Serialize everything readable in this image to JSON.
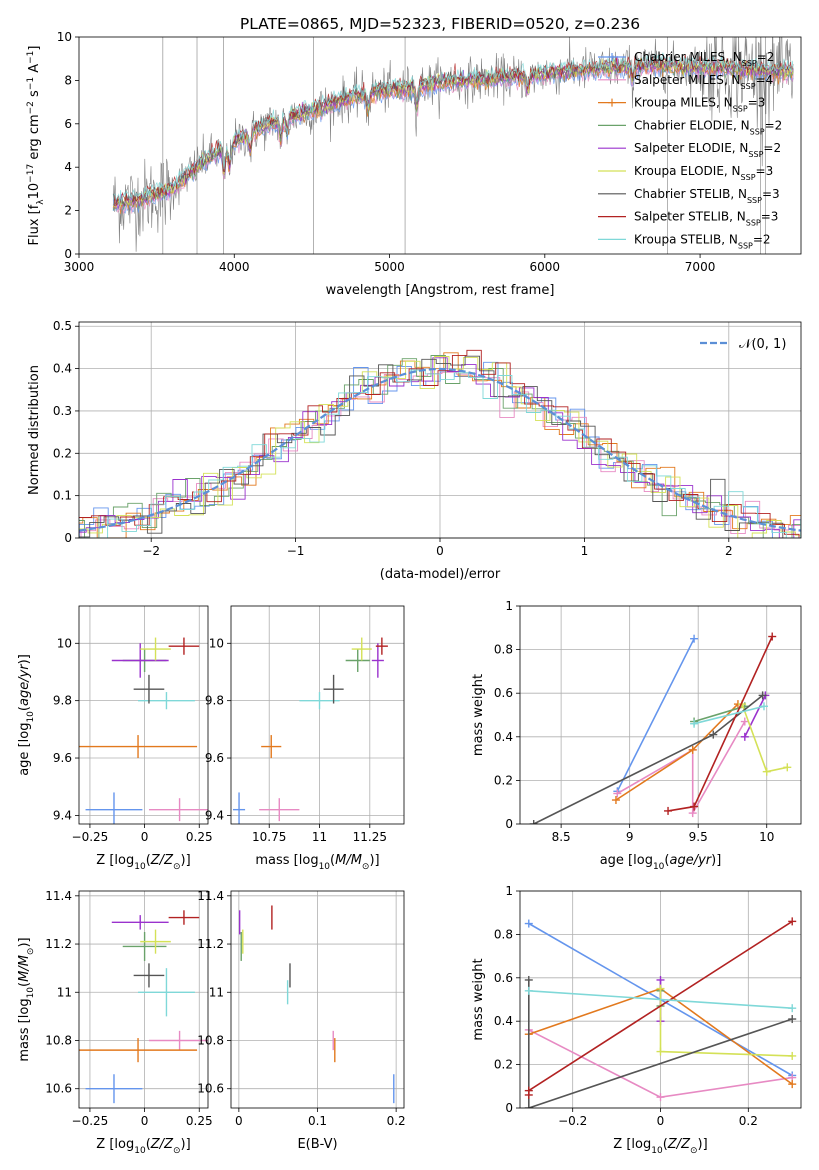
{
  "figure_title": "PLATE=0865, MJD=52323, FIBERID=0520, z=0.236",
  "colors": {
    "chabrier_miles": "#6495ed",
    "salpeter_miles": "#e78ac3",
    "kroupa_miles": "#e2791e",
    "chabrier_elodie": "#6aa26a",
    "salpeter_elodie": "#9a32cd",
    "kroupa_elodie": "#d4e157",
    "chabrier_stelib": "#555555",
    "salpeter_stelib": "#b22222",
    "kroupa_stelib": "#7fd8d8",
    "gaussian": "#5b8fd6"
  },
  "chart_data": [
    {
      "id": "spectrum",
      "type": "line",
      "title": "PLATE=0865, MJD=52323, FIBERID=0520, z=0.236",
      "xlabel": "wavelength [Angstrom, rest frame]",
      "ylabel": "Flux [f_λ 10^-17 erg cm^-2 s^-1 A^-1]",
      "xlim": [
        3000,
        7650
      ],
      "ylim": [
        0,
        10
      ],
      "xticks": [
        3000,
        4000,
        5000,
        6000,
        7000
      ],
      "yticks": [
        0,
        2,
        4,
        6,
        8,
        10
      ],
      "grid": false,
      "legend_position": "top-right",
      "continuum": {
        "x": [
          3220,
          3400,
          3600,
          3800,
          3950,
          4100,
          4300,
          4500,
          4700,
          4900,
          5100,
          5300,
          5500,
          5700,
          5900,
          6100,
          6300,
          6500,
          6700,
          6900,
          7100,
          7300,
          7600
        ],
        "y": [
          2.3,
          2.5,
          3.0,
          4.3,
          4.9,
          5.6,
          6.2,
          6.6,
          7.1,
          7.5,
          7.6,
          7.9,
          8.0,
          8.1,
          8.2,
          8.4,
          8.5,
          8.6,
          8.7,
          8.6,
          8.6,
          8.5,
          8.4
        ]
      },
      "series": [
        {
          "name": "Chabrier MILES, N_SSP=2",
          "color": "#6495ed",
          "marker": "+"
        },
        {
          "name": "Salpeter MILES, N_SSP=4",
          "color": "#e78ac3",
          "marker": "x"
        },
        {
          "name": "Kroupa MILES, N_SSP=3",
          "color": "#e2791e",
          "marker": "+"
        },
        {
          "name": "Chabrier ELODIE, N_SSP=2",
          "color": "#6aa26a",
          "marker": ""
        },
        {
          "name": "Salpeter ELODIE, N_SSP=2",
          "color": "#9a32cd",
          "marker": ""
        },
        {
          "name": "Kroupa ELODIE, N_SSP=3",
          "color": "#d4e157",
          "marker": ""
        },
        {
          "name": "Chabrier STELIB, N_SSP=3",
          "color": "#555555",
          "marker": ""
        },
        {
          "name": "Salpeter STELIB, N_SSP=3",
          "color": "#b22222",
          "marker": ""
        },
        {
          "name": "Kroupa STELIB, N_SSP=2",
          "color": "#7fd8d8",
          "marker": ""
        }
      ]
    },
    {
      "id": "residuals",
      "type": "histogram",
      "xlabel": "(data-model)/error",
      "ylabel": "Normed distribution",
      "xlim": [
        -2.5,
        2.5
      ],
      "ylim": [
        0,
        0.51
      ],
      "xticks": [
        -2,
        -1,
        0,
        1,
        2
      ],
      "yticks": [
        0.0,
        0.1,
        0.2,
        0.3,
        0.4,
        0.5
      ],
      "grid": true,
      "legend_position": "top-right",
      "gaussian_label": "𝒩(0, 1)",
      "bin_width": 0.1
    },
    {
      "id": "age_vs_z",
      "type": "scatter",
      "xlabel": "Z [log10(Z/Z☉)]",
      "ylabel": "age [log10(age/yr)]",
      "xlim": [
        -0.3,
        0.29
      ],
      "ylim": [
        9.37,
        10.13
      ],
      "xticks": [
        -0.25,
        0.0,
        0.25
      ],
      "yticks": [
        9.4,
        9.6,
        9.8,
        10.0
      ],
      "grid": true,
      "points": [
        {
          "x": -0.14,
          "y": 9.42,
          "xerr": 0.13,
          "yerr": 0.06,
          "color": "#6495ed"
        },
        {
          "x": 0.16,
          "y": 9.42,
          "xerr": 0.14,
          "yerr": 0.04,
          "color": "#e78ac3"
        },
        {
          "x": -0.03,
          "y": 9.64,
          "xerr": 0.27,
          "yerr": 0.04,
          "color": "#e2791e"
        },
        {
          "x": 0.1,
          "y": 9.8,
          "xerr": 0.13,
          "yerr": 0.03,
          "color": "#7fd8d8"
        },
        {
          "x": 0.0,
          "y": 9.94,
          "xerr": 0.1,
          "yerr": 0.04,
          "color": "#6aa26a"
        },
        {
          "x": -0.02,
          "y": 9.94,
          "xerr": 0.13,
          "yerr": 0.06,
          "color": "#9a32cd"
        },
        {
          "x": 0.05,
          "y": 9.98,
          "xerr": 0.07,
          "yerr": 0.04,
          "color": "#d4e157"
        },
        {
          "x": 0.02,
          "y": 9.84,
          "xerr": 0.07,
          "yerr": 0.05,
          "color": "#555555"
        },
        {
          "x": 0.18,
          "y": 9.99,
          "xerr": 0.07,
          "yerr": 0.03,
          "color": "#b22222"
        }
      ]
    },
    {
      "id": "age_vs_mass",
      "type": "scatter",
      "xlabel": "mass [log10(M/M☉)]",
      "ylabel": "",
      "xlim": [
        10.56,
        11.42
      ],
      "ylim": [
        9.37,
        10.13
      ],
      "xticks": [
        10.75,
        11.0,
        11.25
      ],
      "yticks": [
        9.4,
        9.6,
        9.8,
        10.0
      ],
      "grid": true,
      "points": [
        {
          "x": 10.6,
          "y": 9.42,
          "xerr": 0.03,
          "yerr": 0.06,
          "color": "#6495ed"
        },
        {
          "x": 10.8,
          "y": 9.42,
          "xerr": 0.1,
          "yerr": 0.04,
          "color": "#e78ac3"
        },
        {
          "x": 10.76,
          "y": 9.64,
          "xerr": 0.05,
          "yerr": 0.04,
          "color": "#e2791e"
        },
        {
          "x": 11.0,
          "y": 9.8,
          "xerr": 0.1,
          "yerr": 0.03,
          "color": "#7fd8d8"
        },
        {
          "x": 11.19,
          "y": 9.94,
          "xerr": 0.06,
          "yerr": 0.04,
          "color": "#6aa26a"
        },
        {
          "x": 11.29,
          "y": 9.94,
          "xerr": 0.03,
          "yerr": 0.06,
          "color": "#9a32cd"
        },
        {
          "x": 11.21,
          "y": 9.98,
          "xerr": 0.05,
          "yerr": 0.04,
          "color": "#d4e157"
        },
        {
          "x": 11.07,
          "y": 9.84,
          "xerr": 0.05,
          "yerr": 0.05,
          "color": "#555555"
        },
        {
          "x": 11.31,
          "y": 9.99,
          "xerr": 0.03,
          "yerr": 0.03,
          "color": "#b22222"
        }
      ]
    },
    {
      "id": "weight_vs_age",
      "type": "line",
      "xlabel": "age [log10(age/yr)]",
      "ylabel": "mass weight",
      "xlim": [
        8.2,
        10.25
      ],
      "ylim": [
        0,
        1
      ],
      "xticks": [
        8.5,
        9.0,
        9.5,
        10.0
      ],
      "yticks": [
        0.0,
        0.2,
        0.4,
        0.6,
        0.8,
        1.0
      ],
      "grid": true,
      "series": [
        {
          "color": "#6495ed",
          "x": [
            8.91,
            9.47
          ],
          "y": [
            0.15,
            0.85
          ]
        },
        {
          "color": "#e78ac3",
          "x": [
            8.91,
            9.46,
            9.46,
            9.84
          ],
          "y": [
            0.14,
            0.34,
            0.05,
            0.47
          ]
        },
        {
          "color": "#e2791e",
          "x": [
            8.9,
            9.46,
            9.79
          ],
          "y": [
            0.11,
            0.34,
            0.55
          ]
        },
        {
          "color": "#6aa26a",
          "x": [
            9.47,
            9.84
          ],
          "y": [
            0.47,
            0.54
          ]
        },
        {
          "color": "#9a32cd",
          "x": [
            9.84,
            9.99
          ],
          "y": [
            0.4,
            0.59
          ]
        },
        {
          "color": "#d4e157",
          "x": [
            9.82,
            10.0,
            10.15
          ],
          "y": [
            0.55,
            0.24,
            0.26
          ]
        },
        {
          "color": "#555555",
          "x": [
            8.3,
            9.61,
            9.97
          ],
          "y": [
            0.0,
            0.41,
            0.59
          ]
        },
        {
          "color": "#b22222",
          "x": [
            9.28,
            9.47,
            10.04
          ],
          "y": [
            0.06,
            0.08,
            0.86
          ]
        },
        {
          "color": "#7fd8d8",
          "x": [
            9.47,
            9.98
          ],
          "y": [
            0.46,
            0.54
          ]
        }
      ]
    },
    {
      "id": "mass_vs_z",
      "type": "scatter",
      "xlabel": "Z [log10(Z/Z☉)]",
      "ylabel": "mass [log10(M/M☉)]",
      "xlim": [
        -0.3,
        0.29
      ],
      "ylim": [
        10.52,
        11.42
      ],
      "xticks": [
        -0.25,
        0.0,
        0.25
      ],
      "yticks": [
        10.6,
        10.8,
        11.0,
        11.2,
        11.4
      ],
      "grid": true,
      "points": [
        {
          "x": -0.14,
          "y": 10.6,
          "xerr": 0.13,
          "yerr": 0.06,
          "color": "#6495ed"
        },
        {
          "x": 0.16,
          "y": 10.8,
          "xerr": 0.14,
          "yerr": 0.04,
          "color": "#e78ac3"
        },
        {
          "x": -0.03,
          "y": 10.76,
          "xerr": 0.27,
          "yerr": 0.05,
          "color": "#e2791e"
        },
        {
          "x": 0.1,
          "y": 11.0,
          "xerr": 0.13,
          "yerr": 0.1,
          "color": "#7fd8d8"
        },
        {
          "x": 0.0,
          "y": 11.19,
          "xerr": 0.1,
          "yerr": 0.06,
          "color": "#6aa26a"
        },
        {
          "x": -0.02,
          "y": 11.29,
          "xerr": 0.13,
          "yerr": 0.03,
          "color": "#9a32cd"
        },
        {
          "x": 0.05,
          "y": 11.21,
          "xerr": 0.07,
          "yerr": 0.05,
          "color": "#d4e157"
        },
        {
          "x": 0.02,
          "y": 11.07,
          "xerr": 0.07,
          "yerr": 0.05,
          "color": "#555555"
        },
        {
          "x": 0.18,
          "y": 11.31,
          "xerr": 0.07,
          "yerr": 0.03,
          "color": "#b22222"
        }
      ]
    },
    {
      "id": "mass_vs_ebv",
      "type": "scatter",
      "xlabel": "E(B-V)",
      "ylabel": "",
      "xlim": [
        -0.01,
        0.21
      ],
      "ylim": [
        10.52,
        11.42
      ],
      "xticks": [
        0.0,
        0.1,
        0.2
      ],
      "yticks": [
        10.6,
        10.8,
        11.0,
        11.2,
        11.4
      ],
      "grid": true,
      "points": [
        {
          "x": 0.197,
          "y": 10.6,
          "xerr": 0.0,
          "yerr": 0.06,
          "color": "#6495ed"
        },
        {
          "x": 0.12,
          "y": 10.8,
          "xerr": 0.0,
          "yerr": 0.04,
          "color": "#e78ac3"
        },
        {
          "x": 0.122,
          "y": 10.76,
          "xerr": 0.0,
          "yerr": 0.05,
          "color": "#e2791e"
        },
        {
          "x": 0.062,
          "y": 11.0,
          "xerr": 0.0,
          "yerr": 0.05,
          "color": "#7fd8d8"
        },
        {
          "x": 0.003,
          "y": 11.19,
          "xerr": 0.0,
          "yerr": 0.06,
          "color": "#6aa26a"
        },
        {
          "x": 0.001,
          "y": 11.29,
          "xerr": 0.0,
          "yerr": 0.05,
          "color": "#9a32cd"
        },
        {
          "x": 0.005,
          "y": 11.21,
          "xerr": 0.0,
          "yerr": 0.05,
          "color": "#d4e157"
        },
        {
          "x": 0.065,
          "y": 11.07,
          "xerr": 0.0,
          "yerr": 0.05,
          "color": "#555555"
        },
        {
          "x": 0.042,
          "y": 11.31,
          "xerr": 0.0,
          "yerr": 0.05,
          "color": "#b22222"
        }
      ]
    },
    {
      "id": "weight_vs_z",
      "type": "line",
      "xlabel": "Z [log10(Z/Z☉)]",
      "ylabel": "mass weight",
      "xlim": [
        -0.32,
        0.32
      ],
      "ylim": [
        0,
        1
      ],
      "xticks": [
        -0.2,
        0.0,
        0.2
      ],
      "yticks": [
        0.0,
        0.2,
        0.4,
        0.6,
        0.8,
        1.0
      ],
      "grid": true,
      "series": [
        {
          "color": "#6495ed",
          "x": [
            -0.3,
            0.3
          ],
          "y": [
            0.85,
            0.15
          ]
        },
        {
          "color": "#e78ac3",
          "x": [
            -0.3,
            0.0,
            0.3
          ],
          "y": [
            0.36,
            0.05,
            0.14
          ]
        },
        {
          "color": "#e2791e",
          "x": [
            -0.3,
            0.0,
            0.3
          ],
          "y": [
            0.34,
            0.55,
            0.11
          ]
        },
        {
          "color": "#6aa26a",
          "x": [
            0.0,
            0.0
          ],
          "y": [
            0.47,
            0.54
          ]
        },
        {
          "color": "#9a32cd",
          "x": [
            0.0,
            0.0
          ],
          "y": [
            0.4,
            0.59
          ]
        },
        {
          "color": "#d4e157",
          "x": [
            0.0,
            0.0,
            0.3
          ],
          "y": [
            0.55,
            0.26,
            0.24
          ]
        },
        {
          "color": "#555555",
          "x": [
            -0.3,
            -0.3,
            0.3
          ],
          "y": [
            0.59,
            0.0,
            0.41
          ]
        },
        {
          "color": "#b22222",
          "x": [
            -0.3,
            -0.3,
            0.3
          ],
          "y": [
            0.06,
            0.08,
            0.86
          ]
        },
        {
          "color": "#7fd8d8",
          "x": [
            -0.3,
            0.3
          ],
          "y": [
            0.54,
            0.46
          ]
        }
      ]
    }
  ]
}
